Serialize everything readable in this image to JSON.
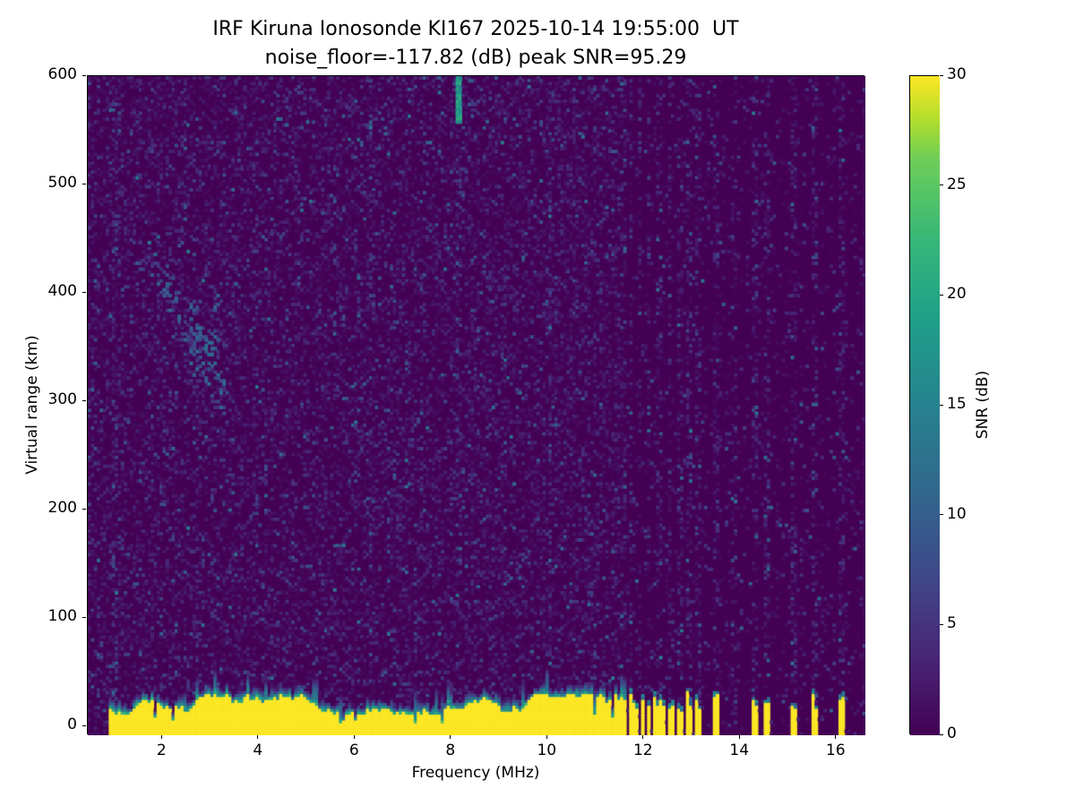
{
  "chart_data": {
    "type": "heatmap",
    "title": "IRF Kiruna Ionosonde KI167 2025-10-14 19:55:00  UT",
    "subtitle": "noise_floor=-117.82 (dB) peak SNR=95.29",
    "xlabel": "Frequency (MHz)",
    "ylabel": "Virtual range (km)",
    "xlim": [
      0.45,
      16.6
    ],
    "ylim": [
      -8,
      600
    ],
    "xticks": [
      2,
      4,
      6,
      8,
      10,
      12,
      14,
      16
    ],
    "yticks": [
      0,
      100,
      200,
      300,
      400,
      500,
      600
    ],
    "grid": false,
    "noise_floor_db": -117.82,
    "peak_snr_db": 95.29,
    "colorbar": {
      "label": "SNR (dB)",
      "min": 0,
      "max": 30,
      "ticks": [
        0,
        5,
        10,
        15,
        20,
        25,
        30
      ],
      "colormap": "viridis",
      "position": "right"
    },
    "features": {
      "background_snr_db": 0,
      "speckle": {
        "dense_below_mhz": 11.65,
        "dense_prob": 0.45,
        "sparse_prob": 0.12
      },
      "busy_columns_mhz": [
        1.0,
        6.32,
        8.15,
        10.05,
        13.85
      ],
      "vertical_interference_mhz": [
        11.72,
        11.9,
        12.1,
        12.3,
        12.52,
        12.76,
        12.95,
        13.12,
        13.5,
        14.3,
        14.55,
        15.1,
        15.55,
        16.1
      ],
      "ground_clutter": {
        "snr_db": 30,
        "continuous_range_mhz": [
          0.88,
          11.65
        ],
        "typical_top_km": 25,
        "bars_mhz": [
          11.72,
          11.84,
          11.97,
          12.1,
          12.24,
          12.4,
          12.56,
          12.74,
          12.93,
          13.12,
          13.5,
          14.3,
          14.55,
          15.1,
          15.55,
          16.1
        ],
        "bar_width_mhz": 0.09
      },
      "ionospheric_trace": {
        "freq_range_mhz": [
          1.85,
          3.3
        ],
        "range_km": [
          300,
          432
        ],
        "snr_db_range": [
          4,
          13
        ]
      },
      "top_spike": {
        "freq_mhz": 8.15,
        "range_km": [
          556,
          600
        ],
        "snr_db": 18
      }
    }
  }
}
